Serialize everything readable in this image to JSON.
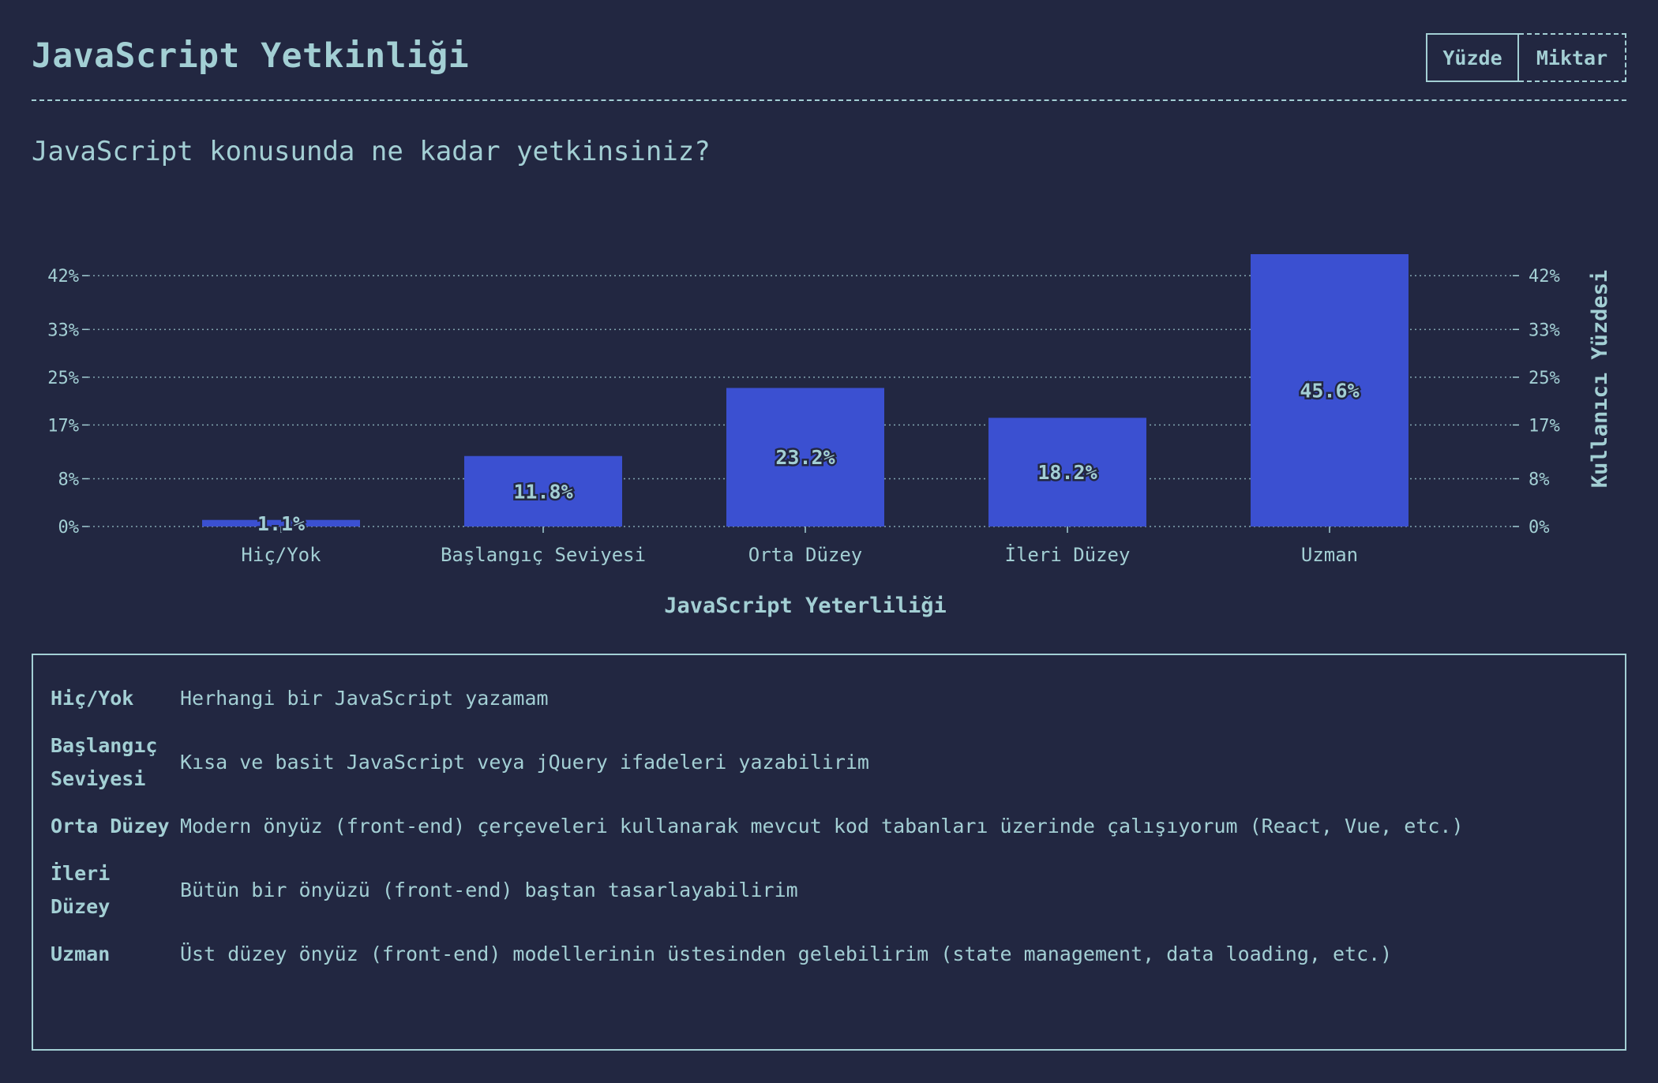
{
  "header": {
    "title": "JavaScript Yetkinliği",
    "toggle": {
      "percent_label": "Yüzde",
      "count_label": "Miktar",
      "selected": "Yüzde"
    }
  },
  "question": "JavaScript konusunda ne kadar yetkinsiniz?",
  "colors": {
    "background": "#222741",
    "text": "#a3cfd4",
    "bar": "#3b50d1"
  },
  "chart_data": {
    "type": "bar",
    "categories": [
      "Hiç/Yok",
      "Başlangıç Seviyesi",
      "Orta Düzey",
      "İleri Düzey",
      "Uzman"
    ],
    "values": [
      1.1,
      11.8,
      23.2,
      18.2,
      45.6
    ],
    "value_labels": [
      "1.1%",
      "11.8%",
      "23.2%",
      "18.2%",
      "45.6%"
    ],
    "xlabel": "JavaScript Yeterliliği",
    "ylabel": "Kullanıcı Yüzdesi",
    "y_ticks": [
      0,
      8,
      17,
      25,
      33,
      42
    ],
    "y_tick_labels": [
      "0%",
      "8%",
      "17%",
      "25%",
      "33%",
      "42%"
    ],
    "ylim": [
      0,
      45.6
    ],
    "grid": true,
    "legend": "none"
  },
  "legend": [
    {
      "term": "Hiç/Yok",
      "description": "Herhangi bir JavaScript yazamam"
    },
    {
      "term": "Başlangıç Seviyesi",
      "description": "Kısa ve basit JavaScript veya jQuery ifadeleri yazabilirim"
    },
    {
      "term": "Orta Düzey",
      "description": "Modern önyüz (front-end) çerçeveleri kullanarak mevcut kod tabanları üzerinde çalışıyorum (React, Vue, etc.)"
    },
    {
      "term": "İleri Düzey",
      "description": "Bütün bir önyüzü (front-end) baştan tasarlayabilirim"
    },
    {
      "term": "Uzman",
      "description": "Üst düzey önyüz (front-end) modellerinin üstesinden gelebilirim (state management, data loading, etc.)"
    }
  ]
}
